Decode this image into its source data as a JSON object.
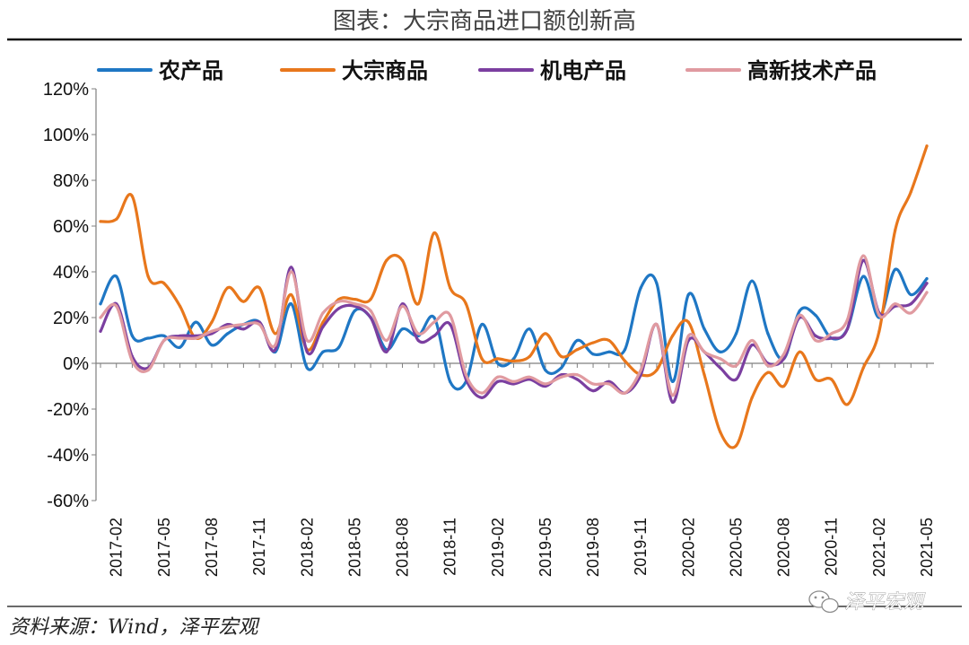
{
  "chart_title": "图表：大宗商品进口额创新高",
  "source": "资料来源：Wind，泽平宏观",
  "watermark": "泽平宏观",
  "chart_data": {
    "type": "line",
    "title": "图表：大宗商品进口额创新高",
    "xlabel": "",
    "ylabel": "",
    "ylim": [
      -60,
      120
    ],
    "y_ticks": [
      "-60%",
      "-40%",
      "-20%",
      "0%",
      "20%",
      "40%",
      "60%",
      "80%",
      "100%",
      "120%"
    ],
    "x_tick_labels": [
      "2017-02",
      "2017-05",
      "2017-08",
      "2017-11",
      "2018-02",
      "2018-05",
      "2018-08",
      "2018-11",
      "2019-02",
      "2019-05",
      "2019-08",
      "2019-11",
      "2020-02",
      "2020-05",
      "2020-08",
      "2020-11",
      "2021-02",
      "2021-05"
    ],
    "legend_position": "top",
    "grid": false,
    "x": [
      "2017-01",
      "2017-02",
      "2017-03",
      "2017-04",
      "2017-05",
      "2017-06",
      "2017-07",
      "2017-08",
      "2017-09",
      "2017-10",
      "2017-11",
      "2017-12",
      "2018-01",
      "2018-02",
      "2018-03",
      "2018-04",
      "2018-05",
      "2018-06",
      "2018-07",
      "2018-08",
      "2018-09",
      "2018-10",
      "2018-11",
      "2018-12",
      "2019-01",
      "2019-02",
      "2019-03",
      "2019-04",
      "2019-05",
      "2019-06",
      "2019-07",
      "2019-08",
      "2019-09",
      "2019-10",
      "2019-11",
      "2019-12",
      "2020-01",
      "2020-02",
      "2020-03",
      "2020-04",
      "2020-05",
      "2020-06",
      "2020-07",
      "2020-08",
      "2020-09",
      "2020-10",
      "2020-11",
      "2020-12",
      "2021-01",
      "2021-02",
      "2021-03",
      "2021-04",
      "2021-05"
    ],
    "series": [
      {
        "name": "农产品",
        "color": "#1f77c4",
        "values": [
          26,
          38,
          12,
          11,
          12,
          7,
          18,
          8,
          13,
          17,
          18,
          5,
          26,
          -2,
          5,
          7,
          23,
          20,
          6,
          15,
          12,
          20,
          -8,
          -8,
          17,
          0,
          2,
          15,
          -3,
          -2,
          10,
          4,
          5,
          6,
          33,
          35,
          -8,
          30,
          15,
          5,
          13,
          36,
          13,
          2,
          23,
          21,
          11,
          15,
          38,
          20,
          41,
          30,
          37
        ]
      },
      {
        "name": "大宗商品",
        "color": "#e8771c",
        "values": [
          62,
          63,
          73,
          38,
          35,
          25,
          11,
          18,
          33,
          27,
          33,
          13,
          30,
          6,
          18,
          28,
          28,
          28,
          45,
          45,
          26,
          57,
          33,
          26,
          2,
          2,
          1,
          3,
          13,
          3,
          6,
          9,
          10,
          1,
          -5,
          -3,
          12,
          18,
          -5,
          -30,
          -36,
          -15,
          -4,
          -10,
          5,
          -7,
          -7,
          -18,
          -2,
          14,
          58,
          75,
          95
        ]
      },
      {
        "name": "机电产品",
        "color": "#7b3fa0",
        "values": [
          14,
          26,
          3,
          -2,
          10,
          12,
          12,
          13,
          17,
          15,
          18,
          6,
          42,
          5,
          16,
          24,
          25,
          20,
          5,
          26,
          10,
          12,
          17,
          -7,
          -15,
          -8,
          -9,
          -7,
          -10,
          -5,
          -7,
          -12,
          -8,
          -13,
          -5,
          17,
          -17,
          10,
          5,
          -2,
          -7,
          8,
          0,
          2,
          20,
          12,
          11,
          15,
          45,
          22,
          25,
          26,
          35
        ]
      },
      {
        "name": "高新技术产品",
        "color": "#e09aa0",
        "values": [
          20,
          25,
          1,
          -3,
          10,
          11,
          11,
          14,
          16,
          17,
          17,
          8,
          40,
          10,
          22,
          27,
          26,
          23,
          10,
          25,
          13,
          18,
          21,
          -5,
          -13,
          -6,
          -8,
          -6,
          -9,
          -6,
          -5,
          -9,
          -9,
          -13,
          -3,
          17,
          -14,
          12,
          5,
          2,
          -1,
          10,
          -1,
          4,
          21,
          10,
          13,
          19,
          47,
          21,
          26,
          22,
          31
        ]
      }
    ]
  }
}
